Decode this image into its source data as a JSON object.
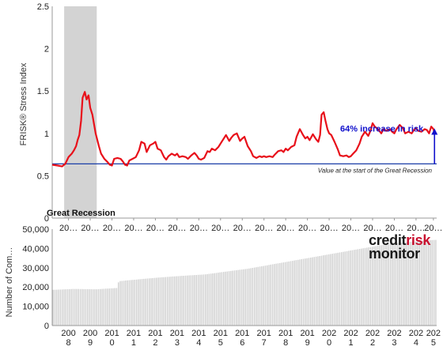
{
  "brand": {
    "part1": "credit",
    "part2": "risk",
    "part3": "monitor"
  },
  "chart_data": [
    {
      "type": "line",
      "ylabel": "FRISK® Stress Index",
      "ylim": [
        0,
        2.5
      ],
      "yticks": [
        "0",
        "0.5",
        "1",
        "1.5",
        "2",
        "2.5"
      ],
      "xlim": [
        2007.75,
        2025.45
      ],
      "xtick_labels": [
        "20…",
        "20…",
        "20…",
        "20…",
        "20…",
        "20…",
        "20…",
        "20…",
        "20…",
        "20…",
        "20…",
        "20…",
        "20…",
        "20…",
        "20…",
        "20…",
        "20…",
        "20…"
      ],
      "xtick_positions": [
        2008.5,
        2009.5,
        2010.5,
        2011.5,
        2012.5,
        2013.5,
        2014.5,
        2015.5,
        2016.5,
        2017.5,
        2018.5,
        2019.5,
        2020.5,
        2021.5,
        2022.5,
        2023.5,
        2024.5,
        2025.3
      ],
      "shaded_region": {
        "label": "Great Recession",
        "start": 2008.3,
        "end": 2009.8,
        "color": "#d3d3d3"
      },
      "baseline": {
        "value": 0.64,
        "label": "Value at the start of the Great Recession",
        "color": "#1a3ea8"
      },
      "annotation": {
        "text": "64% increase in risk",
        "color": "#1111cc",
        "arrow_x": 2025.35,
        "from": 0.64,
        "to": 1.05
      },
      "series": [
        {
          "color": "#e8101a",
          "x": [
            2007.75,
            2008.0,
            2008.2,
            2008.35,
            2008.5,
            2008.65,
            2008.75,
            2008.85,
            2008.92,
            2009.0,
            2009.08,
            2009.15,
            2009.25,
            2009.33,
            2009.42,
            2009.5,
            2009.6,
            2009.75,
            2009.9,
            2010.0,
            2010.15,
            2010.3,
            2010.4,
            2010.5,
            2010.6,
            2010.75,
            2010.9,
            2011.0,
            2011.1,
            2011.2,
            2011.3,
            2011.45,
            2011.6,
            2011.75,
            2011.85,
            2012.0,
            2012.1,
            2012.25,
            2012.4,
            2012.5,
            2012.6,
            2012.75,
            2012.9,
            2013.0,
            2013.1,
            2013.25,
            2013.4,
            2013.5,
            2013.6,
            2013.75,
            2013.9,
            2014.0,
            2014.15,
            2014.3,
            2014.4,
            2014.5,
            2014.6,
            2014.75,
            2014.9,
            2015.0,
            2015.1,
            2015.25,
            2015.4,
            2015.5,
            2015.6,
            2015.75,
            2015.9,
            2016.0,
            2016.1,
            2016.25,
            2016.4,
            2016.5,
            2016.6,
            2016.75,
            2016.9,
            2017.0,
            2017.15,
            2017.3,
            2017.4,
            2017.5,
            2017.6,
            2017.75,
            2017.9,
            2018.0,
            2018.15,
            2018.3,
            2018.4,
            2018.5,
            2018.6,
            2018.75,
            2018.9,
            2019.0,
            2019.15,
            2019.3,
            2019.4,
            2019.5,
            2019.6,
            2019.75,
            2019.9,
            2020.0,
            2020.08,
            2020.15,
            2020.25,
            2020.33,
            2020.42,
            2020.5,
            2020.6,
            2020.75,
            2020.9,
            2021.0,
            2021.15,
            2021.3,
            2021.4,
            2021.5,
            2021.6,
            2021.75,
            2021.9,
            2022.0,
            2022.15,
            2022.3,
            2022.4,
            2022.5,
            2022.6,
            2022.75,
            2022.9,
            2023.0,
            2023.15,
            2023.3,
            2023.4,
            2023.5,
            2023.6,
            2023.75,
            2023.9,
            2024.0,
            2024.15,
            2024.3,
            2024.4,
            2024.5,
            2024.6,
            2024.75,
            2024.9,
            2025.0,
            2025.1,
            2025.2,
            2025.3,
            2025.35
          ],
          "y": [
            0.63,
            0.62,
            0.61,
            0.64,
            0.72,
            0.76,
            0.8,
            0.85,
            0.92,
            0.98,
            1.15,
            1.42,
            1.49,
            1.4,
            1.45,
            1.3,
            1.22,
            1.0,
            0.85,
            0.76,
            0.7,
            0.66,
            0.63,
            0.62,
            0.7,
            0.71,
            0.7,
            0.67,
            0.63,
            0.62,
            0.68,
            0.7,
            0.72,
            0.8,
            0.9,
            0.88,
            0.78,
            0.86,
            0.88,
            0.9,
            0.82,
            0.8,
            0.72,
            0.69,
            0.73,
            0.76,
            0.74,
            0.76,
            0.72,
            0.73,
            0.72,
            0.7,
            0.74,
            0.77,
            0.74,
            0.7,
            0.69,
            0.71,
            0.79,
            0.78,
            0.82,
            0.8,
            0.84,
            0.88,
            0.92,
            0.98,
            0.91,
            0.95,
            0.98,
            1.0,
            0.91,
            0.94,
            0.96,
            0.85,
            0.79,
            0.73,
            0.71,
            0.73,
            0.72,
            0.73,
            0.72,
            0.73,
            0.72,
            0.75,
            0.79,
            0.8,
            0.78,
            0.82,
            0.8,
            0.84,
            0.86,
            0.96,
            1.05,
            0.98,
            0.94,
            0.96,
            0.92,
            0.99,
            0.93,
            0.9,
            0.98,
            1.22,
            1.25,
            1.15,
            1.05,
            1.0,
            0.98,
            0.9,
            0.81,
            0.74,
            0.73,
            0.74,
            0.72,
            0.73,
            0.76,
            0.8,
            0.88,
            0.96,
            1.02,
            0.97,
            1.03,
            1.12,
            1.08,
            1.05,
            1.0,
            1.05,
            1.03,
            1.05,
            1.02,
            1.0,
            1.05,
            1.1,
            1.06,
            1.0,
            1.02,
            1.0,
            1.04,
            1.06,
            1.03,
            1.02,
            1.05,
            1.04,
            1.0,
            1.08,
            1.05,
            1.0
          ]
        }
      ]
    },
    {
      "type": "bar",
      "ylabel": "Number of Com…",
      "ylim": [
        0,
        50000
      ],
      "yticks": [
        "0",
        "10,000",
        "20,000",
        "30,000",
        "40,000",
        "50,000"
      ],
      "xlim": [
        2007.75,
        2025.45
      ],
      "xtick_labels": [
        "200 8",
        "200 9",
        "201 0",
        "201 1",
        "201 2",
        "201 3",
        "201 4",
        "201 5",
        "201 6",
        "201 7",
        "201 8",
        "201 9",
        "202 0",
        "202 1",
        "202 2",
        "202 3",
        "202 4",
        "202 5"
      ],
      "xtick_positions": [
        2008.5,
        2009.5,
        2010.5,
        2011.5,
        2012.5,
        2013.5,
        2014.5,
        2015.5,
        2016.5,
        2017.5,
        2018.5,
        2019.5,
        2020.5,
        2021.5,
        2022.5,
        2023.5,
        2024.5,
        2025.3
      ],
      "bar_color": "#cfcfcf",
      "series": [
        {
          "x": [
            2007.75,
            2008.75,
            2009.75,
            2010.75,
            2010.8,
            2011.75,
            2012.75,
            2013.75,
            2014.75,
            2015.75,
            2016.75,
            2017.75,
            2018.75,
            2019.75,
            2020.75,
            2021.75,
            2022.75,
            2023.75,
            2024.75,
            2025.45
          ],
          "y": [
            18500,
            19000,
            18800,
            19500,
            23000,
            24000,
            25000,
            25800,
            26500,
            28000,
            29500,
            31500,
            33500,
            35500,
            37500,
            39500,
            41500,
            43000,
            44000,
            44500
          ]
        }
      ]
    }
  ]
}
